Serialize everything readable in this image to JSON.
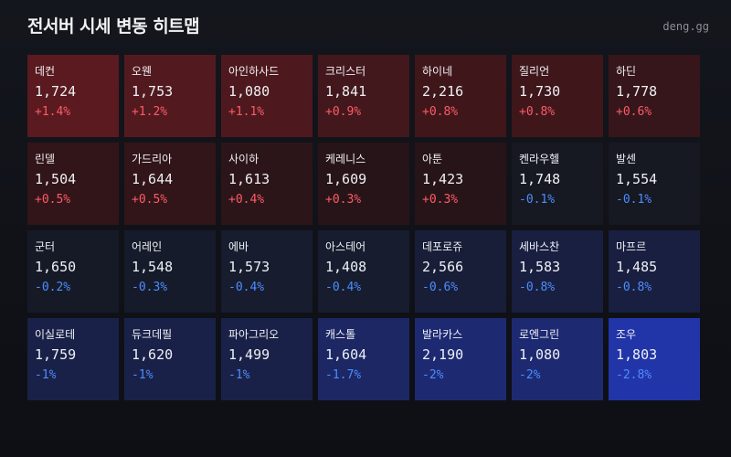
{
  "header": {
    "title": "전서버 시세 변동 히트맵",
    "brand": "deng.gg"
  },
  "cells": [
    {
      "name": "데컨",
      "price": "1,724",
      "change": "+1.4%",
      "dir": "up",
      "bg": "#5a1a20"
    },
    {
      "name": "오웬",
      "price": "1,753",
      "change": "+1.2%",
      "dir": "up",
      "bg": "#521a1f"
    },
    {
      "name": "아인하사드",
      "price": "1,080",
      "change": "+1.1%",
      "dir": "up",
      "bg": "#4e191e"
    },
    {
      "name": "크리스터",
      "price": "1,841",
      "change": "+0.9%",
      "dir": "up",
      "bg": "#43181c"
    },
    {
      "name": "하이네",
      "price": "2,216",
      "change": "+0.8%",
      "dir": "up",
      "bg": "#3f171b"
    },
    {
      "name": "질리언",
      "price": "1,730",
      "change": "+0.8%",
      "dir": "up",
      "bg": "#3f171b"
    },
    {
      "name": "하딘",
      "price": "1,778",
      "change": "+0.6%",
      "dir": "up",
      "bg": "#36161a"
    },
    {
      "name": "린델",
      "price": "1,504",
      "change": "+0.5%",
      "dir": "up",
      "bg": "#311519"
    },
    {
      "name": "가드리아",
      "price": "1,644",
      "change": "+0.5%",
      "dir": "up",
      "bg": "#311519"
    },
    {
      "name": "사이하",
      "price": "1,613",
      "change": "+0.4%",
      "dir": "up",
      "bg": "#2c1519"
    },
    {
      "name": "케레니스",
      "price": "1,609",
      "change": "+0.3%",
      "dir": "up",
      "bg": "#271418"
    },
    {
      "name": "아툰",
      "price": "1,423",
      "change": "+0.3%",
      "dir": "up",
      "bg": "#271418"
    },
    {
      "name": "켄라우헬",
      "price": "1,748",
      "change": "-0.1%",
      "dir": "down",
      "bg": "#161822"
    },
    {
      "name": "발센",
      "price": "1,554",
      "change": "-0.1%",
      "dir": "down",
      "bg": "#161822"
    },
    {
      "name": "군터",
      "price": "1,650",
      "change": "-0.2%",
      "dir": "down",
      "bg": "#161a27"
    },
    {
      "name": "어레인",
      "price": "1,548",
      "change": "-0.3%",
      "dir": "down",
      "bg": "#161b2b"
    },
    {
      "name": "에바",
      "price": "1,573",
      "change": "-0.4%",
      "dir": "down",
      "bg": "#171c2f"
    },
    {
      "name": "아스테어",
      "price": "1,408",
      "change": "-0.4%",
      "dir": "down",
      "bg": "#171c2f"
    },
    {
      "name": "데포로쥬",
      "price": "2,566",
      "change": "-0.6%",
      "dir": "down",
      "bg": "#181e38"
    },
    {
      "name": "세바스찬",
      "price": "1,583",
      "change": "-0.8%",
      "dir": "down",
      "bg": "#191f40"
    },
    {
      "name": "마프르",
      "price": "1,485",
      "change": "-0.8%",
      "dir": "down",
      "bg": "#191f40"
    },
    {
      "name": "이실로테",
      "price": "1,759",
      "change": "-1%",
      "dir": "down",
      "bg": "#1a2148"
    },
    {
      "name": "듀크데필",
      "price": "1,620",
      "change": "-1%",
      "dir": "down",
      "bg": "#1a2148"
    },
    {
      "name": "파아그리오",
      "price": "1,499",
      "change": "-1%",
      "dir": "down",
      "bg": "#1a2148"
    },
    {
      "name": "캐스톨",
      "price": "1,604",
      "change": "-1.7%",
      "dir": "down",
      "bg": "#1c2764"
    },
    {
      "name": "발라카스",
      "price": "2,190",
      "change": "-2%",
      "dir": "down",
      "bg": "#1d2a72"
    },
    {
      "name": "로엔그린",
      "price": "1,080",
      "change": "-2%",
      "dir": "down",
      "bg": "#1d2a72"
    },
    {
      "name": "조우",
      "price": "1,803",
      "change": "-2.8%",
      "dir": "down",
      "bg": "#2235a8"
    }
  ]
}
